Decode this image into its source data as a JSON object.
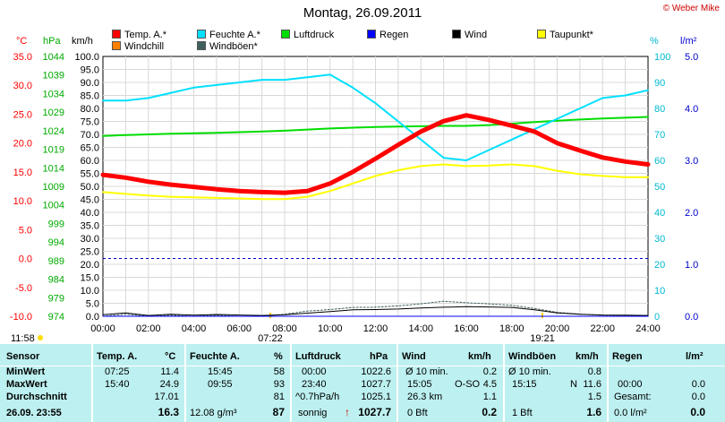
{
  "title": "Montag, 26.09.2011",
  "copyright": "© Weber Mike",
  "legend": [
    {
      "label": "Temp. A.*",
      "color": "#ff0000"
    },
    {
      "label": "Feuchte A.*",
      "color": "#00e0ff"
    },
    {
      "label": "Luftdruck",
      "color": "#00dd00"
    },
    {
      "label": "Regen",
      "color": "#0000ff"
    },
    {
      "label": "Wind",
      "color": "#000000"
    },
    {
      "label": "Taupunkt*",
      "color": "#ffff00"
    },
    {
      "label": "Windchill",
      "color": "#ff8000"
    },
    {
      "label": "Windböen*",
      "color": "#406060"
    }
  ],
  "axis_units": {
    "temp": "°C",
    "pressure": "hPa",
    "wind": "km/h",
    "humidity": "%",
    "rain": "l/m²"
  },
  "markers": {
    "sunrise": "07:22",
    "sunset": "19:21",
    "now": "11:58"
  },
  "chart_data": {
    "type": "line",
    "x": [
      "00:00",
      "01:00",
      "02:00",
      "03:00",
      "04:00",
      "05:00",
      "06:00",
      "07:00",
      "08:00",
      "09:00",
      "10:00",
      "11:00",
      "12:00",
      "13:00",
      "14:00",
      "15:00",
      "16:00",
      "17:00",
      "18:00",
      "19:00",
      "20:00",
      "21:00",
      "22:00",
      "23:00",
      "24:00"
    ],
    "xticks": [
      "00:00",
      "02:00",
      "04:00",
      "06:00",
      "08:00",
      "10:00",
      "12:00",
      "14:00",
      "16:00",
      "18:00",
      "20:00",
      "22:00",
      "24:00"
    ],
    "axes": {
      "temp": {
        "unit": "°C",
        "min": -10,
        "max": 35,
        "ticks": [
          "35.0",
          "30.0",
          "25.0",
          "20.0",
          "15.0",
          "10.0",
          "5.0",
          "0.0",
          "-5.0",
          "-10.0"
        ]
      },
      "pressure": {
        "unit": "hPa",
        "min": 974,
        "max": 1044,
        "ticks": [
          "1044",
          "1039",
          "1034",
          "1029",
          "1024",
          "1019",
          "1014",
          "1009",
          "1004",
          "999",
          "994",
          "989",
          "984",
          "979",
          "974"
        ]
      },
      "wind": {
        "unit": "km/h",
        "min": 0,
        "max": 100,
        "ticks": [
          "100.0",
          "95.0",
          "90.0",
          "85.0",
          "80.0",
          "75.0",
          "70.0",
          "65.0",
          "60.0",
          "55.0",
          "50.0",
          "45.0",
          "40.0",
          "35.0",
          "30.0",
          "25.0",
          "20.0",
          "15.0",
          "10.0",
          "5.0",
          "0.0"
        ]
      },
      "humidity": {
        "unit": "%",
        "min": 0,
        "max": 100,
        "ticks": [
          "100",
          "90",
          "80",
          "70",
          "60",
          "50",
          "40",
          "30",
          "20",
          "10",
          "0"
        ]
      },
      "rain": {
        "unit": "l/m²",
        "min": 0,
        "max": 5,
        "ticks": [
          "5.0",
          "4.0",
          "3.0",
          "2.0",
          "1.0",
          "0.0"
        ]
      }
    },
    "series": [
      {
        "name": "Temp. A.*",
        "axis": "temp",
        "color": "#ff0000",
        "values": [
          14.5,
          14.0,
          13.3,
          12.8,
          12.4,
          12.0,
          11.7,
          11.5,
          11.4,
          11.7,
          13.0,
          15.0,
          17.3,
          19.7,
          22.0,
          23.8,
          24.8,
          24.0,
          23.0,
          22.0,
          20.0,
          18.7,
          17.5,
          16.8,
          16.3
        ]
      },
      {
        "name": "Feuchte A.*",
        "axis": "humidity",
        "color": "#00e0ff",
        "values": [
          83,
          83,
          84,
          86,
          88,
          89,
          90,
          91,
          91,
          92,
          93,
          88,
          82,
          75,
          68,
          61,
          60,
          64,
          68,
          72,
          76,
          80,
          84,
          85,
          87
        ]
      },
      {
        "name": "Luftdruck",
        "axis": "pressure",
        "color": "#00dd00",
        "values": [
          1022.6,
          1022.8,
          1023.0,
          1023.2,
          1023.3,
          1023.4,
          1023.6,
          1023.8,
          1024.0,
          1024.3,
          1024.6,
          1024.8,
          1025.0,
          1025.1,
          1025.2,
          1025.3,
          1025.3,
          1025.5,
          1025.9,
          1026.3,
          1026.7,
          1027.0,
          1027.3,
          1027.5,
          1027.7
        ]
      },
      {
        "name": "Taupunkt*",
        "axis": "temp",
        "color": "#ffff00",
        "values": [
          11.5,
          11.2,
          10.9,
          10.7,
          10.6,
          10.5,
          10.4,
          10.3,
          10.3,
          10.7,
          11.7,
          13.0,
          14.3,
          15.3,
          16.0,
          16.3,
          16.0,
          16.1,
          16.3,
          16.0,
          15.2,
          14.6,
          14.3,
          14.1,
          14.1
        ]
      },
      {
        "name": "Wind",
        "axis": "wind",
        "color": "#000000",
        "values": [
          0.6,
          1.3,
          0.3,
          0.8,
          0.4,
          0.7,
          0.5,
          0.3,
          0.6,
          1.2,
          1.8,
          2.5,
          2.6,
          2.8,
          3.2,
          3.5,
          3.7,
          3.6,
          3.4,
          2.5,
          1.3,
          0.8,
          0.5,
          0.4,
          0.3
        ]
      },
      {
        "name": "Windböen*",
        "axis": "wind",
        "color": "#406060",
        "values": [
          0,
          0.8,
          0,
          0.4,
          0,
          0.4,
          0,
          0,
          0.8,
          2.0,
          2.6,
          3.4,
          3.5,
          4.0,
          4.8,
          5.8,
          5.2,
          4.8,
          4.2,
          3.0,
          1.5,
          0.8,
          0.4,
          0.3,
          0
        ]
      },
      {
        "name": "Regen",
        "axis": "rain",
        "color": "#0000ff",
        "values": [
          0,
          0,
          0,
          0,
          0,
          0,
          0,
          0,
          0,
          0,
          0,
          0,
          0,
          0,
          0,
          0,
          0,
          0,
          0,
          0,
          0,
          0,
          0,
          0,
          0
        ]
      }
    ],
    "reference_lines": [
      {
        "axis": "temp",
        "value": 0,
        "color": "#0000cc",
        "style": "dashed"
      }
    ],
    "grid": true
  },
  "table": {
    "row_labels": [
      "Sensor",
      "MinWert",
      "MaxWert",
      "Durchschnitt",
      "26.09.  23:55"
    ],
    "temp": {
      "header": "Temp. A.",
      "unit": "°C",
      "min_time": "07:25",
      "min": "11.4",
      "max_time": "15:40",
      "max": "24.9",
      "avg": "17.01",
      "current": "16.3"
    },
    "humidity": {
      "header": "Feuchte A.",
      "unit": "%",
      "min_time": "15:45",
      "min": "58",
      "max_time": "09:55",
      "max": "93",
      "avg": "81",
      "abs": "12.08 g/m³",
      "current": "87"
    },
    "pressure": {
      "header": "Luftdruck",
      "unit": "hPa",
      "min_time": "00:00",
      "min": "1022.6",
      "max_time": "23:40",
      "max": "1027.7",
      "trend_label": "^0.7hPa/h",
      "avg": "1025.1",
      "condition": "sonnig",
      "current": "1027.7",
      "trend_arrow": "↑"
    },
    "wind": {
      "header": "Wind",
      "unit": "km/h",
      "avg_label": "Ø 10 min.",
      "avg10": "0.2",
      "max_time": "15:05",
      "max_dir": "O-SO",
      "max": "4.5",
      "distance": "26.3 km",
      "avg": "1.1",
      "bft": "0 Bft",
      "current": "0.2"
    },
    "gust": {
      "header": "Windböen",
      "unit": "km/h",
      "avg_label": "Ø 10 min.",
      "avg10": "0.8",
      "max_time": "15:15",
      "max_dir": "N",
      "max": "11.6",
      "avg": "1.5",
      "bft": "1 Bft",
      "current": "1.6"
    },
    "rain": {
      "header": "Regen",
      "unit": "l/m²",
      "time": "00:00",
      "value": "0.0",
      "total_label": "Gesamt:",
      "total": "0.0",
      "current_label": "0.0 l/m²",
      "current": "0.0"
    }
  }
}
